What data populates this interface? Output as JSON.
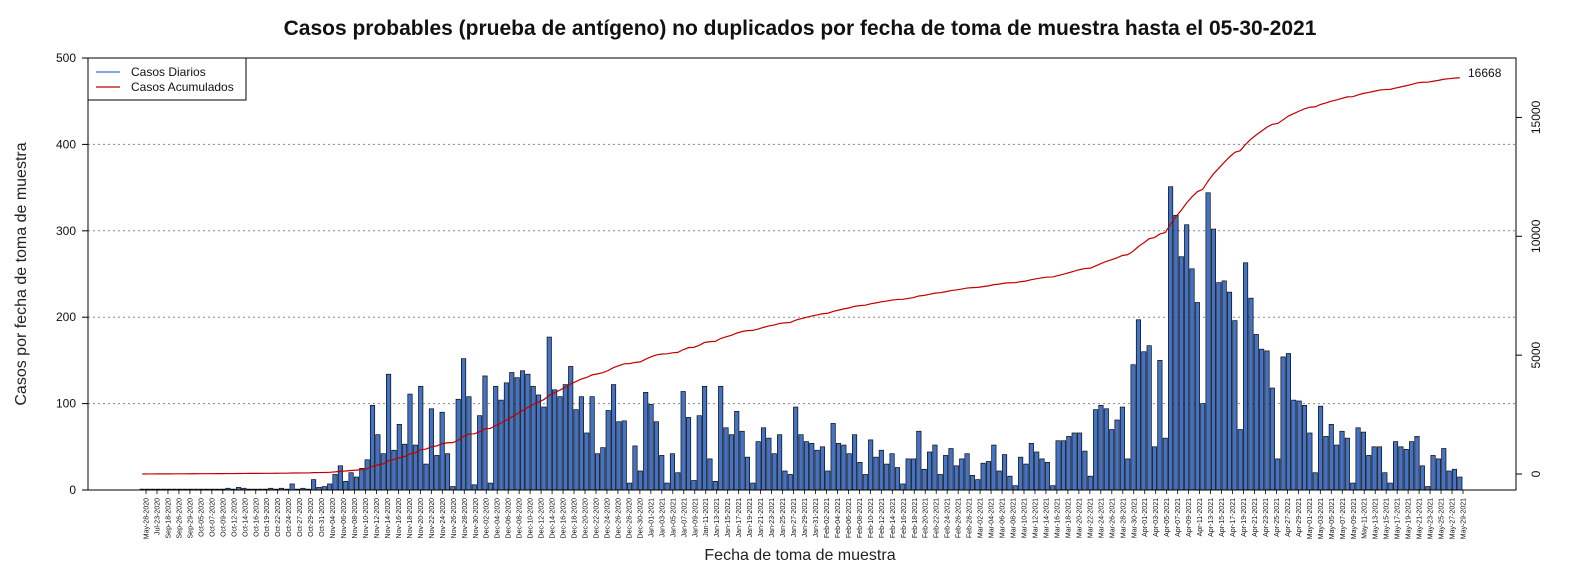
{
  "chart_data": {
    "type": "bar",
    "title": "Casos probables (prueba de antígeno) no duplicados por fecha de toma de muestra hasta el 05-30-2021",
    "xlabel": "Fecha de toma de muestra",
    "ylabel": "Casos por fecha de toma de muestra",
    "ylim": [
      0,
      500
    ],
    "y_ticks": [
      "0",
      "100",
      "200",
      "300",
      "400",
      "500"
    ],
    "y2lim": [
      0,
      17500
    ],
    "y2_ticks": [
      "0",
      "5000",
      "10000",
      "15000"
    ],
    "grid": "horizontal dotted",
    "legend_position": "top-left",
    "annotation": "16668",
    "x_tick_labels": [
      "May-28-2020",
      "Jul-23-2020",
      "Sep-18-2020",
      "Sep-26-2020",
      "Sep-29-2020",
      "Oct-05-2020",
      "Oct-07-2020",
      "Oct-09-2020",
      "Oct-12-2020",
      "Oct-14-2020",
      "Oct-16-2020",
      "Oct-19-2020",
      "Oct-22-2020",
      "Oct-24-2020",
      "Oct-27-2020",
      "Oct-29-2020",
      "Oct-31-2020",
      "Nov-04-2020",
      "Nov-06-2020",
      "Nov-08-2020",
      "Nov-10-2020",
      "Nov-12-2020",
      "Nov-14-2020",
      "Nov-16-2020",
      "Nov-18-2020",
      "Nov-20-2020",
      "Nov-22-2020",
      "Nov-24-2020",
      "Nov-26-2020",
      "Nov-28-2020",
      "Nov-30-2020",
      "Dec-02-2020",
      "Dec-04-2020",
      "Dec-06-2020",
      "Dec-08-2020",
      "Dec-10-2020",
      "Dec-12-2020",
      "Dec-14-2020",
      "Dec-16-2020",
      "Dec-18-2020",
      "Dec-20-2020",
      "Dec-22-2020",
      "Dec-24-2020",
      "Dec-26-2020",
      "Dec-28-2020",
      "Dec-30-2020",
      "Jan-01-2021",
      "Jan-03-2021",
      "Jan-05-2021",
      "Jan-07-2021",
      "Jan-09-2021",
      "Jan-11-2021",
      "Jan-13-2021",
      "Jan-15-2021",
      "Jan-17-2021",
      "Jan-19-2021",
      "Jan-21-2021",
      "Jan-23-2021",
      "Jan-25-2021",
      "Jan-27-2021",
      "Jan-29-2021",
      "Jan-31-2021",
      "Feb-02-2021",
      "Feb-04-2021",
      "Feb-06-2021",
      "Feb-08-2021",
      "Feb-10-2021",
      "Feb-12-2021",
      "Feb-14-2021",
      "Feb-16-2021",
      "Feb-18-2021",
      "Feb-20-2021",
      "Feb-22-2021",
      "Feb-24-2021",
      "Feb-26-2021",
      "Feb-28-2021",
      "Mar-02-2021",
      "Mar-04-2021",
      "Mar-06-2021",
      "Mar-08-2021",
      "Mar-10-2021",
      "Mar-12-2021",
      "Mar-14-2021",
      "Mar-16-2021",
      "Mar-18-2021",
      "Mar-20-2021",
      "Mar-22-2021",
      "Mar-24-2021",
      "Mar-26-2021",
      "Mar-28-2021",
      "Mar-30-2021",
      "Apr-01-2021",
      "Apr-03-2021",
      "Apr-05-2021",
      "Apr-07-2021",
      "Apr-09-2021",
      "Apr-11-2021",
      "Apr-13-2021",
      "Apr-15-2021",
      "Apr-17-2021",
      "Apr-19-2021",
      "Apr-21-2021",
      "Apr-23-2021",
      "Apr-25-2021",
      "Apr-27-2021",
      "Apr-29-2021",
      "May-01-2021",
      "May-03-2021",
      "May-05-2021",
      "May-07-2021",
      "May-09-2021",
      "May-11-2021",
      "May-13-2021",
      "May-15-2021",
      "May-17-2021",
      "May-19-2021",
      "May-21-2021",
      "May-23-2021",
      "May-25-2021",
      "May-27-2021",
      "May-29-2021"
    ],
    "series": [
      {
        "name": "Casos Diarios",
        "kind": "bar",
        "color": "#4472C4",
        "values": [
          1,
          1,
          1,
          1,
          1,
          1,
          1,
          1,
          1,
          1,
          1,
          1,
          1,
          1,
          1,
          1,
          2,
          1,
          3,
          2,
          1,
          1,
          1,
          1,
          2,
          1,
          2,
          1,
          7,
          1,
          2,
          1,
          12,
          3,
          4,
          7,
          18,
          28,
          10,
          20,
          15,
          25,
          35,
          98,
          64,
          42,
          134,
          46,
          76,
          53,
          111,
          52,
          120,
          30,
          94,
          40,
          90,
          42,
          4,
          105,
          152,
          108,
          6,
          86,
          132,
          8,
          120,
          104,
          124,
          136,
          130,
          138,
          134,
          120,
          110,
          96,
          177,
          116,
          108,
          122,
          143,
          93,
          108,
          66,
          108,
          42,
          49,
          92,
          122,
          79,
          80,
          8,
          51,
          22,
          113,
          99,
          79,
          40,
          8,
          42,
          20,
          114,
          84,
          11,
          86,
          120,
          36,
          10,
          120,
          72,
          64,
          91,
          68,
          38,
          8,
          56,
          72,
          60,
          42,
          64,
          22,
          18,
          96,
          64,
          56,
          54,
          46,
          50,
          22,
          77,
          54,
          52,
          42,
          64,
          32,
          18,
          58,
          38,
          46,
          30,
          42,
          26,
          7,
          36,
          36,
          68,
          24,
          44,
          52,
          18,
          40,
          48,
          28,
          36,
          42,
          17,
          12,
          31,
          33,
          52,
          22,
          41,
          16,
          5,
          38,
          30,
          54,
          44,
          36,
          32,
          5,
          57,
          57,
          62,
          66,
          66,
          45,
          16,
          93,
          98,
          94,
          70,
          81,
          96,
          36,
          145,
          197,
          160,
          167,
          50,
          150,
          60,
          351,
          318,
          270,
          307,
          256,
          217,
          100,
          344,
          302,
          240,
          242,
          229,
          196,
          70,
          263,
          222,
          180,
          163,
          161,
          118,
          36,
          154,
          158,
          104,
          103,
          98,
          66,
          20,
          97,
          62,
          76,
          52,
          68,
          60,
          8,
          72,
          67,
          40,
          50,
          50,
          20,
          8,
          56,
          50,
          47,
          56,
          62,
          28,
          4,
          40,
          36,
          48,
          22,
          24,
          15
        ]
      },
      {
        "name": "Casos Acumulados",
        "kind": "line",
        "color": "#C00000",
        "axis": "right",
        "final_value": 16668
      }
    ]
  }
}
